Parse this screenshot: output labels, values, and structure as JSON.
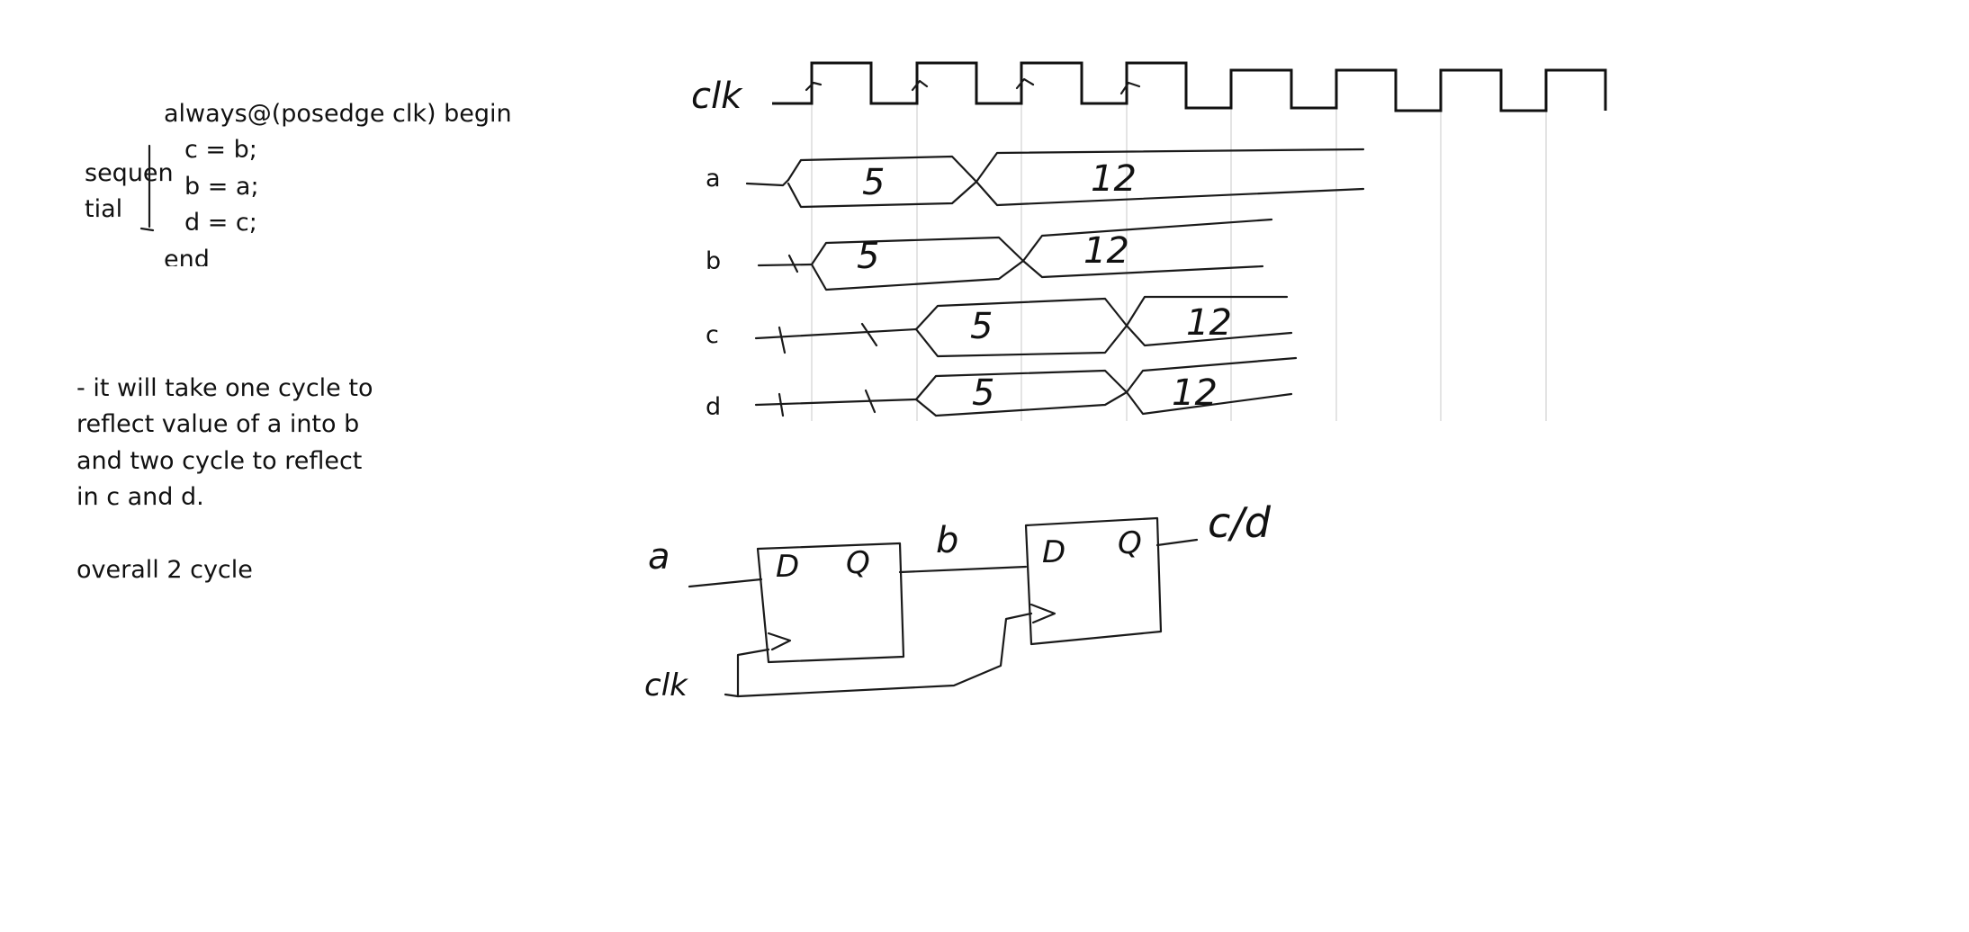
{
  "code": {
    "line1": "always@(posedge clk) begin",
    "line2": "c = b;",
    "line3": "b = a;",
    "line4": "d = c;",
    "line5": "end"
  },
  "annotation": {
    "word_part1": "sequen",
    "word_part2": "tial"
  },
  "explanation": {
    "line1": "- it will take one cycle to",
    "line2": "reflect value of a into b",
    "line3": "and two cycle to reflect",
    "line4": "in c and d.",
    "summary": "overall 2 cycle"
  },
  "timing": {
    "clock_label": "clk",
    "signals": [
      {
        "name": "a",
        "values": [
          "5",
          "12"
        ]
      },
      {
        "name": "b",
        "values": [
          "x",
          "5",
          "12"
        ]
      },
      {
        "name": "c",
        "values": [
          "x",
          "x",
          "5",
          "12"
        ]
      },
      {
        "name": "d",
        "values": [
          "x",
          "x",
          "5",
          "12"
        ]
      }
    ]
  },
  "circuit": {
    "input_label": "a",
    "clock_label": "clk",
    "mid_label": "b",
    "output_label": "c/d",
    "ff1": {
      "d": "D",
      "q": "Q"
    },
    "ff2": {
      "d": "D",
      "q": "Q"
    }
  }
}
